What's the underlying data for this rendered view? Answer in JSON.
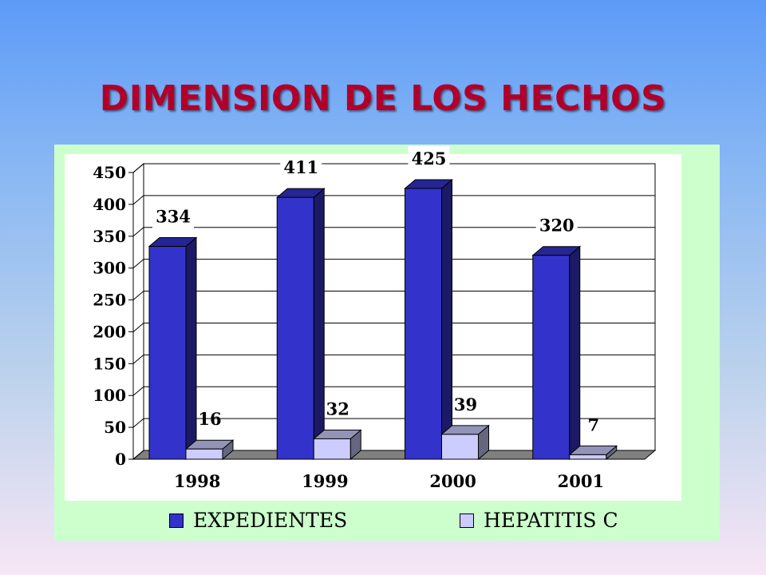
{
  "title": "DIMENSION DE LOS HECHOS",
  "chart_data": {
    "type": "bar",
    "categories": [
      "1998",
      "1999",
      "2000",
      "2001"
    ],
    "series": [
      {
        "name": "EXPEDIENTES",
        "values": [
          334,
          411,
          425,
          320
        ],
        "color": "#3333cc"
      },
      {
        "name": "HEPATITIS C",
        "values": [
          16,
          32,
          39,
          7
        ],
        "color": "#ccccff"
      }
    ],
    "ylim": [
      0,
      450
    ],
    "yticks": [
      0,
      50,
      100,
      150,
      200,
      250,
      300,
      350,
      400,
      450
    ],
    "grid": true,
    "legend": "bottom",
    "style": "3d-clustered-bar",
    "panel_color": "#ccffcc"
  }
}
